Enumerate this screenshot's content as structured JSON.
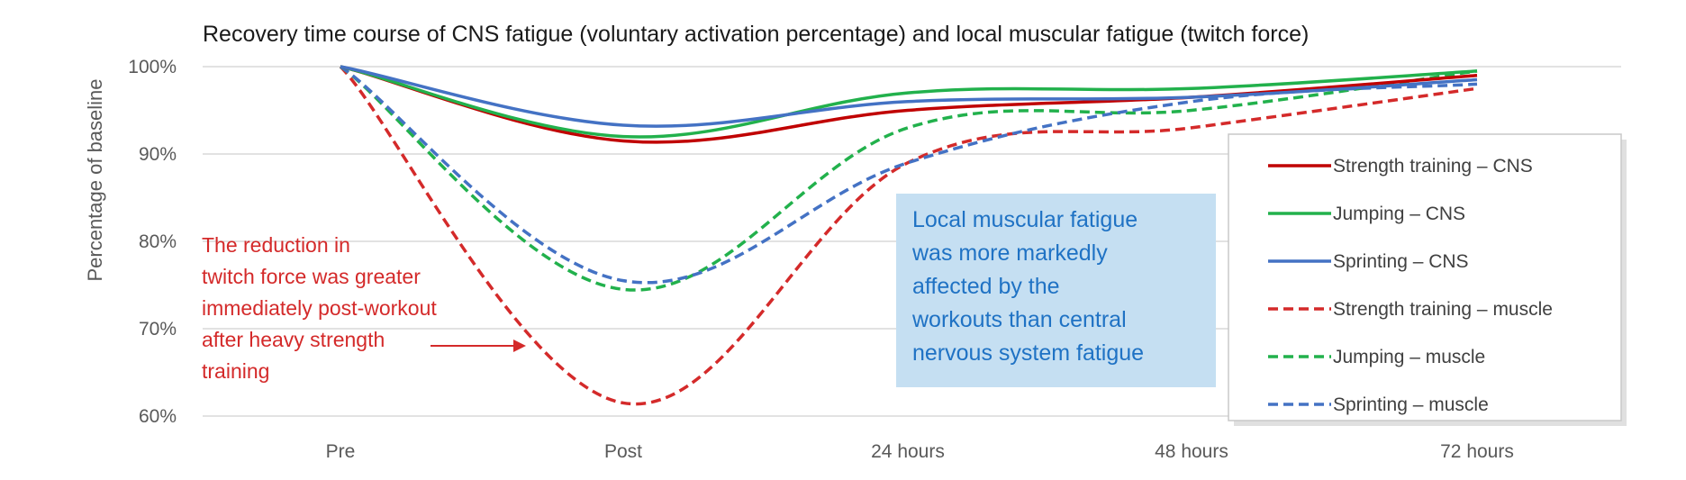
{
  "chart_data": {
    "type": "line",
    "title": "Recovery time course of CNS fatigue (voluntary activation percentage) and local muscular fatigue (twitch force)",
    "ylabel": "Percentage of baseline",
    "xlabel": "",
    "categories": [
      "Pre",
      "Post",
      "24 hours",
      "48 hours",
      "72 hours"
    ],
    "y_ticks": [
      "100%",
      "90%",
      "80%",
      "70%",
      "60%"
    ],
    "y_tick_values": [
      100,
      90,
      80,
      70,
      60
    ],
    "ylim": [
      60,
      100
    ],
    "grid": "horizontal",
    "legend_position": "right",
    "series": [
      {
        "name": "Strength training – CNS",
        "values": [
          100,
          91.5,
          95,
          96.5,
          99
        ],
        "color": "#c00000",
        "style": "solid"
      },
      {
        "name": "Jumping – CNS",
        "values": [
          100,
          92,
          97,
          97.5,
          99.5
        ],
        "color": "#22b14c",
        "style": "solid"
      },
      {
        "name": "Sprinting – CNS",
        "values": [
          100,
          93.3,
          96,
          96.5,
          98.5
        ],
        "color": "#4472c4",
        "style": "solid"
      },
      {
        "name": "Strength training – muscle",
        "values": [
          100,
          61.5,
          89,
          93,
          97.5
        ],
        "color": "#d42a2a",
        "style": "dashed"
      },
      {
        "name": "Jumping – muscle",
        "values": [
          100,
          74.5,
          93,
          95,
          99.5
        ],
        "color": "#22b14c",
        "style": "dashed"
      },
      {
        "name": "Sprinting – muscle",
        "values": [
          100,
          75.5,
          89,
          96,
          98
        ],
        "color": "#4472c4",
        "style": "dashed"
      }
    ],
    "annotations": {
      "red_text": [
        "The reduction in",
        "twitch force was greater",
        "immediately post-workout",
        "after heavy strength",
        "training"
      ],
      "blue_box_text": [
        "Local muscular fatigue",
        "was more markedly",
        "affected by the",
        "workouts than central",
        "nervous system fatigue"
      ],
      "blue_box_color": "#c5dff2",
      "red_text_color": "#d42a2a",
      "blue_text_color": "#1f72c4"
    }
  }
}
